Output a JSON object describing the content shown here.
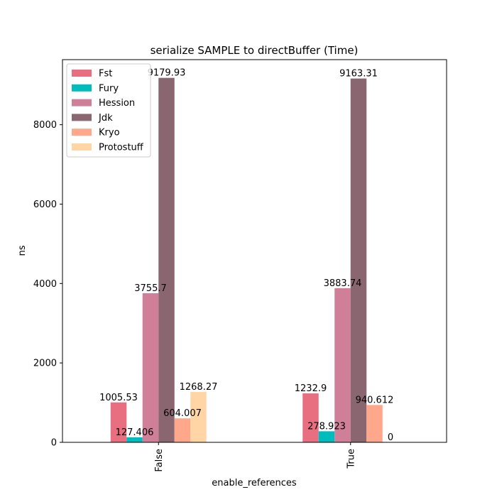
{
  "chart_data": {
    "type": "bar",
    "title": "serialize SAMPLE to directBuffer (Time)",
    "xlabel": "enable_references",
    "ylabel": "ns",
    "categories": [
      "False",
      "True"
    ],
    "ylim": [
      0,
      9638.93
    ],
    "yticks": [
      0,
      2000,
      4000,
      6000,
      8000
    ],
    "grid": false,
    "legend_position": "top-left",
    "series": [
      {
        "name": "Fst",
        "color": "#e76f7f",
        "values": [
          1005.53,
          1232.9
        ],
        "labels": [
          "1005.53",
          "1232.9"
        ]
      },
      {
        "name": "Fury",
        "color": "#00bcbd",
        "values": [
          127.406,
          278.923
        ],
        "labels": [
          "127.406",
          "278.923"
        ]
      },
      {
        "name": "Hession",
        "color": "#d07f98",
        "values": [
          3755.7,
          3883.74
        ],
        "labels": [
          "3755.7",
          "3883.74"
        ]
      },
      {
        "name": "Jdk",
        "color": "#8a6670",
        "values": [
          9179.93,
          9163.31
        ],
        "labels": [
          "9179.93",
          "9163.31"
        ]
      },
      {
        "name": "Kryo",
        "color": "#ffa78a",
        "values": [
          604.007,
          940.612
        ],
        "labels": [
          "604.007",
          "940.612"
        ]
      },
      {
        "name": "Protostuff",
        "color": "#ffd5a5",
        "values": [
          1268.27,
          0
        ],
        "labels": [
          "1268.27",
          "0"
        ]
      }
    ]
  }
}
